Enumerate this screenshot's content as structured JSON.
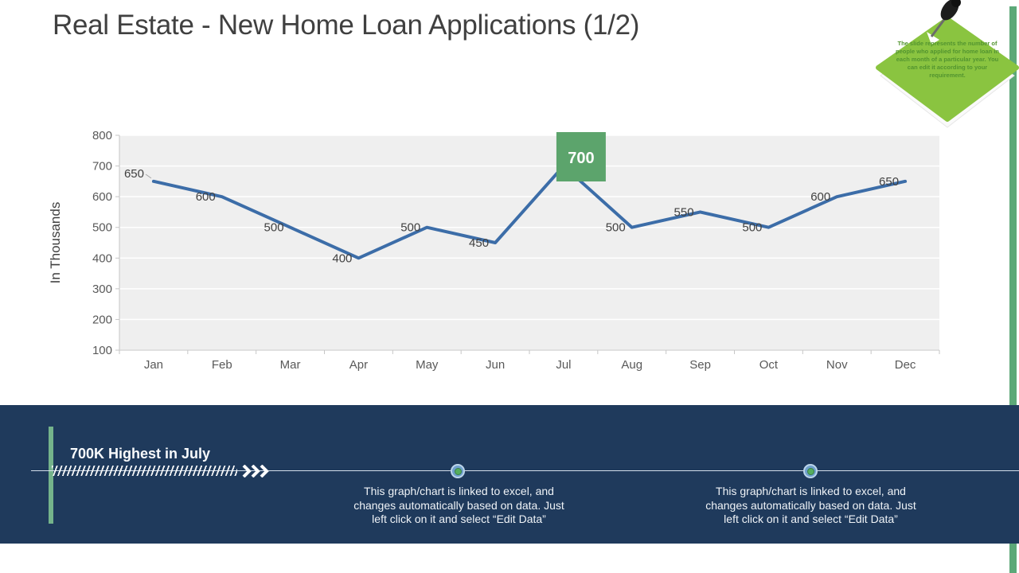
{
  "title": "Real Estate - New Home Loan Applications (1/2)",
  "sticky_note": {
    "text": "The slide represents the number of people who applied for home loan in each month of a particular year. You can edit it according to your requirement."
  },
  "chart_data": {
    "type": "line",
    "title": "",
    "xlabel": "",
    "ylabel": "In Thousands",
    "categories": [
      "Jan",
      "Feb",
      "Mar",
      "Apr",
      "May",
      "Jun",
      "Jul",
      "Aug",
      "Sep",
      "Oct",
      "Nov",
      "Dec"
    ],
    "values": [
      650,
      600,
      500,
      400,
      500,
      450,
      700,
      500,
      550,
      500,
      600,
      650
    ],
    "ylim": [
      100,
      800
    ],
    "ytick_step": 100,
    "grid": true,
    "legend": "none",
    "highlight_index": 6,
    "highlight_label": "700",
    "colors": {
      "line": "#3C6DA8",
      "plot_bg": "#EFEFEF",
      "grid": "#FFFFFF",
      "axis": "#C6C6C6",
      "axis_text": "#595959",
      "label": "#404040",
      "callout": "#5CA46C",
      "callout_text": "#FFFFFF"
    }
  },
  "footer": {
    "headline": "700K Highest in July",
    "note_left": "This graph/chart is linked to excel, and changes automatically based on data. Just left click on it and select “Edit Data”",
    "note_right": "This graph/chart is linked to excel, and changes automatically based on data. Just left click on it and select “Edit Data”"
  },
  "colors": {
    "navy_band": "#1F3A5C",
    "accent_bar_green": "#74B38B",
    "edge_strip_green": "#5CA878",
    "note_green": "#8AC440",
    "note_text_green": "#52942F",
    "timeline_dot_green": "#55AE5E",
    "timeline_ring_blue": "#6FA0CC"
  }
}
